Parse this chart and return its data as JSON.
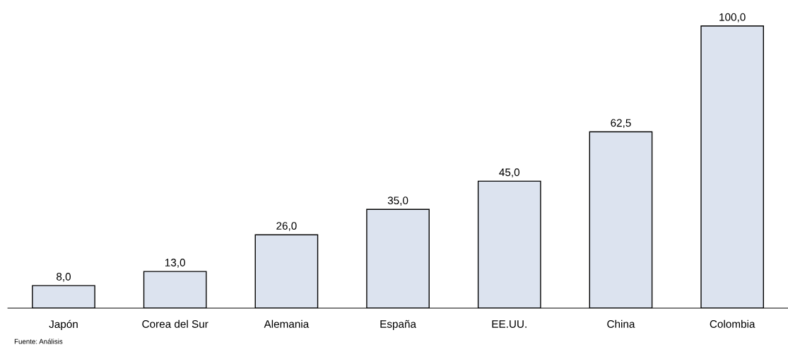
{
  "chart_data": {
    "type": "bar",
    "categories": [
      "Japón",
      "Corea del Sur",
      "Alemania",
      "España",
      "EE.UU.",
      "China",
      "Colombia"
    ],
    "values": [
      8.0,
      13.0,
      26.0,
      35.0,
      45.0,
      62.5,
      100.0
    ],
    "value_labels": [
      "8,0",
      "13,0",
      "26,0",
      "35,0",
      "45,0",
      "62,5",
      "100,0"
    ],
    "color": "#dce3ef",
    "tick_labels": "x",
    "grid": false,
    "annotations": [
      "Fuente: Análisis"
    ]
  }
}
